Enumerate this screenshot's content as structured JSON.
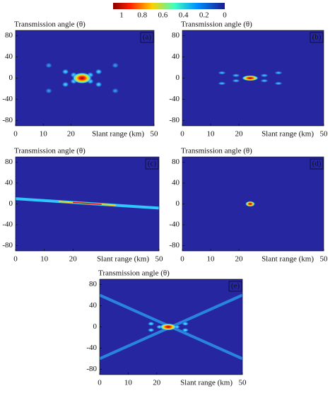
{
  "colorbar": {
    "ticks": [
      1,
      0.8,
      0.6,
      0.4,
      0.2,
      0
    ],
    "lim": [
      1,
      0
    ]
  },
  "chart_data": [
    {
      "type": "heatmap",
      "panel_label": "(a)",
      "ylabel": "Transmission angle (θ)",
      "xlabel": "Slant range (km)",
      "xlim": [
        0,
        50
      ],
      "xticks": [
        0,
        10,
        20,
        50
      ],
      "ylim": [
        -90,
        90
      ],
      "yticks": [
        80,
        40,
        0,
        -40,
        -80
      ]
    },
    {
      "type": "heatmap",
      "panel_label": "(b)",
      "ylabel": "Transmission angle (θ)",
      "xlabel": "Slant range (km)",
      "xlim": [
        0,
        50
      ],
      "xticks": [
        0,
        10,
        20,
        50
      ],
      "ylim": [
        -90,
        90
      ],
      "yticks": [
        80,
        40,
        0,
        -40,
        -80
      ]
    },
    {
      "type": "heatmap",
      "panel_label": "(c)",
      "ylabel": "Transmission angle (θ)",
      "xlabel": "Slant range (km)",
      "xlim": [
        0,
        50
      ],
      "xticks": [
        0,
        10,
        20,
        50
      ],
      "ylim": [
        -90,
        90
      ],
      "yticks": [
        80,
        40,
        0,
        -40,
        -80
      ]
    },
    {
      "type": "heatmap",
      "panel_label": "(d)",
      "ylabel": "Transmission angle (θ)",
      "xlabel": "Slant range (km)",
      "xlim": [
        0,
        50
      ],
      "xticks": [
        0,
        10,
        20,
        50
      ],
      "ylim": [
        -90,
        90
      ],
      "yticks": [
        80,
        40,
        0,
        -40,
        -80
      ]
    },
    {
      "type": "heatmap",
      "panel_label": "(e)",
      "ylabel": "Transmission angle (θ)",
      "xlabel": "Slant range (km)",
      "xlim": [
        0,
        50
      ],
      "xticks": [
        0,
        10,
        20,
        50
      ],
      "ylim": [
        -90,
        90
      ],
      "yticks": [
        80,
        40,
        0,
        -40,
        -80
      ]
    }
  ]
}
